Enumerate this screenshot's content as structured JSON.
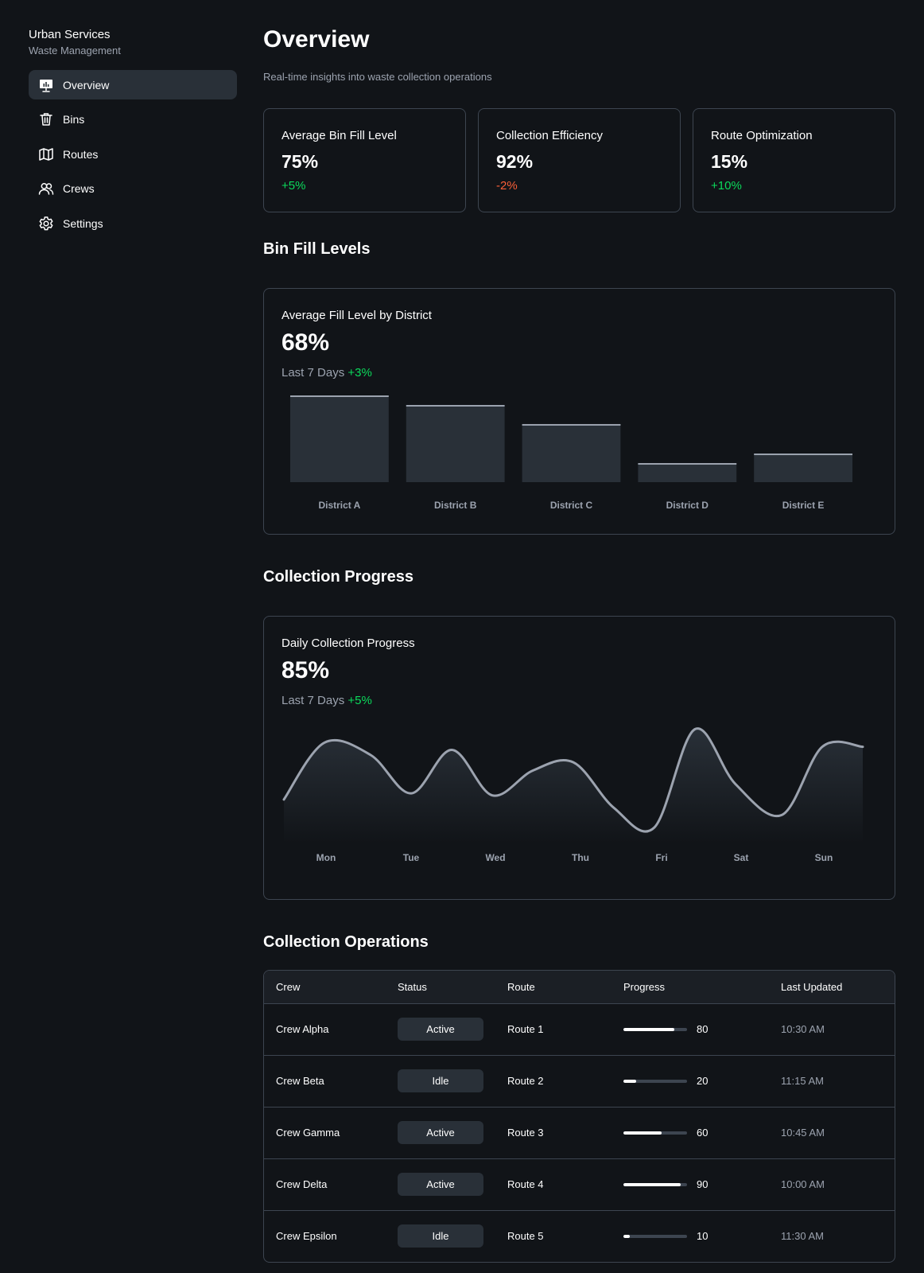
{
  "sidebar": {
    "title": "Urban Services",
    "subtitle": "Waste Management",
    "items": [
      {
        "label": "Overview",
        "icon": "presentation-chart-icon",
        "active": true
      },
      {
        "label": "Bins",
        "icon": "trash-icon",
        "active": false
      },
      {
        "label": "Routes",
        "icon": "map-icon",
        "active": false
      },
      {
        "label": "Crews",
        "icon": "users-icon",
        "active": false
      },
      {
        "label": "Settings",
        "icon": "gear-icon",
        "active": false
      }
    ]
  },
  "header": {
    "title": "Overview",
    "subtitle": "Real-time insights into waste collection operations"
  },
  "kpis": [
    {
      "label": "Average Bin Fill Level",
      "value": "75%",
      "delta": "+5%",
      "trend": "positive"
    },
    {
      "label": "Collection Efficiency",
      "value": "92%",
      "delta": "-2%",
      "trend": "negative"
    },
    {
      "label": "Route Optimization",
      "value": "15%",
      "delta": "+10%",
      "trend": "positive"
    }
  ],
  "bin_section": {
    "title": "Bin Fill Levels",
    "card_label": "Average Fill Level by District",
    "card_value": "68%",
    "period": "Last 7 Days",
    "delta": "+3%"
  },
  "progress_section": {
    "title": "Collection Progress",
    "card_label": "Daily Collection Progress",
    "card_value": "85%",
    "period": "Last 7 Days",
    "delta": "+5%"
  },
  "operations": {
    "title": "Collection Operations",
    "columns": [
      "Crew",
      "Status",
      "Route",
      "Progress",
      "Last Updated"
    ],
    "rows": [
      {
        "crew": "Crew Alpha",
        "status": "Active",
        "route": "Route 1",
        "progress": 80,
        "updated": "10:30 AM"
      },
      {
        "crew": "Crew Beta",
        "status": "Idle",
        "route": "Route 2",
        "progress": 20,
        "updated": "11:15 AM"
      },
      {
        "crew": "Crew Gamma",
        "status": "Active",
        "route": "Route 3",
        "progress": 60,
        "updated": "10:45 AM"
      },
      {
        "crew": "Crew Delta",
        "status": "Active",
        "route": "Route 4",
        "progress": 90,
        "updated": "10:00 AM"
      },
      {
        "crew": "Crew Epsilon",
        "status": "Idle",
        "route": "Route 5",
        "progress": 10,
        "updated": "11:30 AM"
      }
    ]
  },
  "colors": {
    "background": "#111418",
    "border": "#3d4550",
    "bar_fill": "#293038",
    "bar_top": "#9ca3af",
    "line": "#9ca3af",
    "positive": "#0bda5b",
    "negative": "#fa5f38"
  },
  "chart_data": [
    {
      "type": "bar",
      "title": "Average Fill Level by District",
      "categories": [
        "District A",
        "District B",
        "District C",
        "District D",
        "District E"
      ],
      "values": [
        100,
        89,
        67,
        22,
        33
      ],
      "ylim": [
        0,
        100
      ],
      "grid": false,
      "legend": "none"
    },
    {
      "type": "area",
      "title": "Daily Collection Progress",
      "categories": [
        "Mon",
        "Tue",
        "Wed",
        "Thu",
        "Fri",
        "Sat",
        "Sun"
      ],
      "x": [
        0,
        0.07,
        0.15,
        0.22,
        0.29,
        0.36,
        0.43,
        0.5,
        0.57,
        0.64,
        0.71,
        0.78,
        0.86,
        0.93,
        1
      ],
      "values": [
        27,
        82,
        70,
        33,
        75,
        31,
        55,
        63,
        19,
        0,
        95,
        42,
        12,
        78,
        78
      ],
      "grid": false,
      "legend": "none"
    }
  ]
}
